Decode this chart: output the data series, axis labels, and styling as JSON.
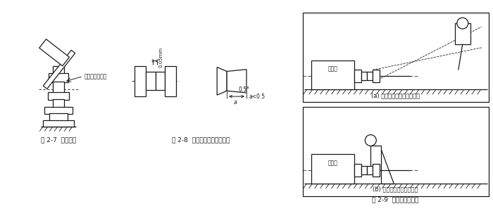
{
  "bg_color": "#ffffff",
  "line_color": "#1a1a1a",
  "fig_width": 7.0,
  "fig_height": 3.0,
  "caption1": "图 2-7  注意事项",
  "caption2": "图 2-8  联轴器之间的安装精度",
  "caption3": "图 2-9  安装精度的检查",
  "label_copper": "此处应垫一铜棒",
  "label_05mm": "0.05mm",
  "label_05deg": "0.5°",
  "label_a_lt": "a<0.5",
  "label_a": "a",
  "label_yuandongji_a": "原动机",
  "label_yuandongji_b": "原动机",
  "label_sub_a": "(a) 用百分表检查联轴器端面",
  "label_sub_b": "(b) 用百分表检查支座端面",
  "font_size_caption": 6.5,
  "font_size_label": 5.5,
  "font_size_sub": 6.0,
  "font_size_motor": 5.5
}
